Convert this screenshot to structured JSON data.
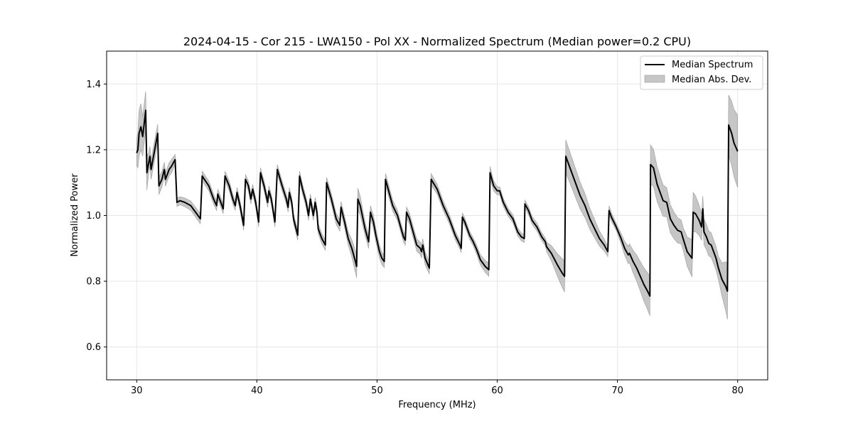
{
  "chart_data": {
    "type": "line",
    "title": "2024-04-15 - Cor 215 - LWA150 - Pol XX - Normalized Spectrum (Median power=0.2 CPU)",
    "xlabel": "Frequency (MHz)",
    "ylabel": "Normalized Power",
    "xlim": [
      27.5,
      82.5
    ],
    "ylim": [
      0.5,
      1.5
    ],
    "xticks": [
      30,
      40,
      50,
      60,
      70,
      80
    ],
    "yticks": [
      0.6,
      0.8,
      1.0,
      1.2,
      1.4
    ],
    "xtick_labels": [
      "30",
      "40",
      "50",
      "60",
      "70",
      "80"
    ],
    "ytick_labels": [
      "0.6",
      "0.8",
      "1.0",
      "1.2",
      "1.4"
    ],
    "grid": true,
    "legend_position": "top-right",
    "series": [
      {
        "name": "Median Spectrum",
        "color": "#000000",
        "style": "line",
        "points": [
          [
            30.0,
            1.19
          ],
          [
            30.1,
            1.2
          ],
          [
            30.2,
            1.25
          ],
          [
            30.35,
            1.27
          ],
          [
            30.5,
            1.24
          ],
          [
            30.75,
            1.32
          ],
          [
            30.85,
            1.13
          ],
          [
            31.0,
            1.16
          ],
          [
            31.1,
            1.18
          ],
          [
            31.2,
            1.14
          ],
          [
            31.5,
            1.2
          ],
          [
            31.75,
            1.25
          ],
          [
            31.85,
            1.09
          ],
          [
            32.1,
            1.11
          ],
          [
            32.3,
            1.14
          ],
          [
            32.4,
            1.11
          ],
          [
            32.7,
            1.14
          ],
          [
            32.9,
            1.15
          ],
          [
            33.2,
            1.17
          ],
          [
            33.35,
            1.04
          ],
          [
            33.6,
            1.045
          ],
          [
            34.0,
            1.04
          ],
          [
            34.5,
            1.03
          ],
          [
            35.0,
            1.005
          ],
          [
            35.3,
            0.99
          ],
          [
            35.45,
            1.12
          ],
          [
            36.0,
            1.09
          ],
          [
            36.4,
            1.05
          ],
          [
            36.65,
            1.03
          ],
          [
            36.75,
            1.065
          ],
          [
            37.0,
            1.04
          ],
          [
            37.2,
            1.02
          ],
          [
            37.35,
            1.12
          ],
          [
            37.7,
            1.09
          ],
          [
            38.0,
            1.05
          ],
          [
            38.2,
            1.03
          ],
          [
            38.35,
            1.07
          ],
          [
            38.6,
            1.03
          ],
          [
            38.9,
            0.97
          ],
          [
            39.05,
            1.11
          ],
          [
            39.3,
            1.09
          ],
          [
            39.5,
            1.05
          ],
          [
            39.65,
            1.08
          ],
          [
            39.9,
            1.04
          ],
          [
            40.15,
            0.98
          ],
          [
            40.3,
            1.13
          ],
          [
            40.6,
            1.09
          ],
          [
            40.9,
            1.04
          ],
          [
            41.0,
            1.075
          ],
          [
            41.2,
            1.05
          ],
          [
            41.5,
            0.98
          ],
          [
            41.7,
            1.14
          ],
          [
            42.1,
            1.09
          ],
          [
            42.45,
            1.05
          ],
          [
            42.6,
            1.025
          ],
          [
            42.7,
            1.07
          ],
          [
            42.9,
            1.04
          ],
          [
            43.05,
            0.99
          ],
          [
            43.4,
            0.94
          ],
          [
            43.55,
            1.12
          ],
          [
            43.8,
            1.08
          ],
          [
            44.1,
            1.04
          ],
          [
            44.3,
            1.0
          ],
          [
            44.45,
            1.05
          ],
          [
            44.6,
            1.02
          ],
          [
            44.7,
            1.0
          ],
          [
            44.85,
            1.04
          ],
          [
            45.0,
            1.01
          ],
          [
            45.1,
            0.96
          ],
          [
            45.4,
            0.93
          ],
          [
            45.7,
            0.91
          ],
          [
            45.8,
            1.1
          ],
          [
            46.2,
            1.05
          ],
          [
            46.6,
            0.99
          ],
          [
            46.9,
            0.97
          ],
          [
            47.0,
            1.025
          ],
          [
            47.3,
            0.98
          ],
          [
            47.6,
            0.93
          ],
          [
            47.9,
            0.9
          ],
          [
            48.2,
            0.86
          ],
          [
            48.3,
            0.845
          ],
          [
            48.4,
            1.05
          ],
          [
            48.6,
            1.03
          ],
          [
            49.0,
            0.96
          ],
          [
            49.3,
            0.92
          ],
          [
            49.45,
            1.01
          ],
          [
            49.7,
            0.98
          ],
          [
            49.9,
            0.94
          ],
          [
            50.2,
            0.89
          ],
          [
            50.4,
            0.87
          ],
          [
            50.6,
            0.86
          ],
          [
            50.7,
            1.11
          ],
          [
            51.0,
            1.07
          ],
          [
            51.3,
            1.03
          ],
          [
            51.7,
            1.0
          ],
          [
            52.0,
            0.96
          ],
          [
            52.2,
            0.935
          ],
          [
            52.35,
            0.925
          ],
          [
            52.45,
            1.01
          ],
          [
            52.7,
            0.99
          ],
          [
            53.0,
            0.95
          ],
          [
            53.3,
            0.91
          ],
          [
            53.6,
            0.9
          ],
          [
            53.7,
            0.89
          ],
          [
            53.8,
            0.91
          ],
          [
            54.0,
            0.87
          ],
          [
            54.35,
            0.84
          ],
          [
            54.5,
            1.11
          ],
          [
            55.0,
            1.08
          ],
          [
            55.5,
            1.03
          ],
          [
            56.0,
            0.99
          ],
          [
            56.5,
            0.94
          ],
          [
            56.9,
            0.91
          ],
          [
            57.0,
            0.9
          ],
          [
            57.1,
            0.995
          ],
          [
            57.3,
            0.98
          ],
          [
            57.7,
            0.94
          ],
          [
            58.0,
            0.92
          ],
          [
            58.3,
            0.895
          ],
          [
            58.6,
            0.865
          ],
          [
            59.0,
            0.845
          ],
          [
            59.3,
            0.835
          ],
          [
            59.4,
            1.13
          ],
          [
            59.7,
            1.09
          ],
          [
            60.0,
            1.075
          ],
          [
            60.2,
            1.075
          ],
          [
            60.5,
            1.04
          ],
          [
            60.9,
            1.01
          ],
          [
            61.3,
            0.99
          ],
          [
            61.7,
            0.95
          ],
          [
            62.0,
            0.935
          ],
          [
            62.25,
            0.93
          ],
          [
            62.3,
            1.035
          ],
          [
            62.6,
            1.015
          ],
          [
            62.9,
            0.985
          ],
          [
            63.3,
            0.965
          ],
          [
            63.7,
            0.935
          ],
          [
            64.0,
            0.92
          ],
          [
            64.1,
            0.905
          ],
          [
            64.5,
            0.885
          ],
          [
            65.0,
            0.85
          ],
          [
            65.4,
            0.825
          ],
          [
            65.6,
            0.815
          ],
          [
            65.7,
            1.18
          ],
          [
            66.1,
            1.14
          ],
          [
            66.5,
            1.1
          ],
          [
            66.9,
            1.06
          ],
          [
            67.3,
            1.03
          ],
          [
            67.7,
            0.99
          ],
          [
            68.1,
            0.96
          ],
          [
            68.5,
            0.93
          ],
          [
            68.9,
            0.91
          ],
          [
            69.2,
            0.89
          ],
          [
            69.3,
            1.015
          ],
          [
            69.5,
            0.995
          ],
          [
            69.9,
            0.965
          ],
          [
            70.3,
            0.93
          ],
          [
            70.6,
            0.9
          ],
          [
            70.9,
            0.88
          ],
          [
            71.0,
            0.885
          ],
          [
            71.3,
            0.86
          ],
          [
            71.6,
            0.84
          ],
          [
            71.9,
            0.815
          ],
          [
            72.2,
            0.79
          ],
          [
            72.5,
            0.77
          ],
          [
            72.7,
            0.755
          ],
          [
            72.75,
            1.155
          ],
          [
            73.0,
            1.145
          ],
          [
            73.3,
            1.095
          ],
          [
            73.6,
            1.065
          ],
          [
            73.8,
            1.045
          ],
          [
            74.1,
            1.04
          ],
          [
            74.4,
            0.99
          ],
          [
            74.7,
            0.97
          ],
          [
            75.0,
            0.955
          ],
          [
            75.3,
            0.95
          ],
          [
            75.5,
            0.925
          ],
          [
            75.8,
            0.89
          ],
          [
            76.1,
            0.875
          ],
          [
            76.2,
            0.87
          ],
          [
            76.3,
            1.01
          ],
          [
            76.5,
            1.005
          ],
          [
            76.8,
            0.985
          ],
          [
            77.0,
            0.965
          ],
          [
            77.1,
            1.02
          ],
          [
            77.2,
            0.95
          ],
          [
            77.4,
            0.935
          ],
          [
            77.6,
            0.915
          ],
          [
            77.8,
            0.91
          ],
          [
            78.0,
            0.89
          ],
          [
            78.2,
            0.87
          ],
          [
            78.4,
            0.84
          ],
          [
            78.7,
            0.805
          ],
          [
            79.0,
            0.785
          ],
          [
            79.15,
            0.77
          ],
          [
            79.25,
            1.275
          ],
          [
            79.5,
            1.25
          ],
          [
            79.7,
            1.22
          ],
          [
            80.0,
            1.195
          ]
        ]
      },
      {
        "name": "Median Abs. Dev.",
        "color": "#b3b3b3",
        "style": "band",
        "spread": [
          [
            30.0,
            0.04
          ],
          [
            30.2,
            0.07
          ],
          [
            30.4,
            0.07
          ],
          [
            30.6,
            0.05
          ],
          [
            30.8,
            0.06
          ],
          [
            31.0,
            0.03
          ],
          [
            31.5,
            0.03
          ],
          [
            32.0,
            0.025
          ],
          [
            32.5,
            0.02
          ],
          [
            33.0,
            0.02
          ],
          [
            33.4,
            0.012
          ],
          [
            35.0,
            0.015
          ],
          [
            40.0,
            0.015
          ],
          [
            45.0,
            0.015
          ],
          [
            47.5,
            0.018
          ],
          [
            48.3,
            0.035
          ],
          [
            49.0,
            0.02
          ],
          [
            50.0,
            0.02
          ],
          [
            52.0,
            0.015
          ],
          [
            54.0,
            0.02
          ],
          [
            55.0,
            0.015
          ],
          [
            58.0,
            0.012
          ],
          [
            59.3,
            0.02
          ],
          [
            60.0,
            0.012
          ],
          [
            64.0,
            0.012
          ],
          [
            65.7,
            0.05
          ],
          [
            67.0,
            0.04
          ],
          [
            69.2,
            0.015
          ],
          [
            70.0,
            0.01
          ],
          [
            72.7,
            0.06
          ],
          [
            74.0,
            0.045
          ],
          [
            75.5,
            0.035
          ],
          [
            76.3,
            0.06
          ],
          [
            77.0,
            0.04
          ],
          [
            78.5,
            0.035
          ],
          [
            79.2,
            0.09
          ],
          [
            79.6,
            0.1
          ],
          [
            80.0,
            0.11
          ]
        ]
      }
    ]
  }
}
